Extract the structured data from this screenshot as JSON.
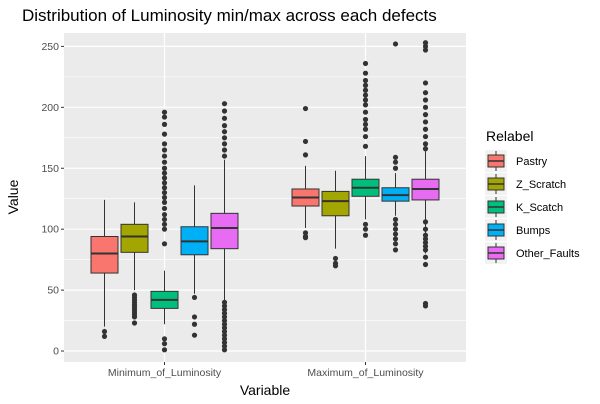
{
  "chart_data": {
    "type": "boxplot",
    "title": "Distribution of Luminosity min/max across each defects",
    "xlabel": "Variable",
    "ylabel": "Value",
    "categories": [
      "Minimum_of_Luminosity",
      "Maximum_of_Luminosity"
    ],
    "ylim": [
      -9,
      261
    ],
    "yticks": [
      0,
      50,
      100,
      150,
      200,
      250
    ],
    "grid": true,
    "background": "#ebebeb",
    "legend": {
      "title": "Relabel",
      "position": "right"
    },
    "series": [
      {
        "name": "Pastry",
        "color": "#F8766D",
        "boxes": [
          {
            "category": "Minimum_of_Luminosity",
            "min": 20,
            "q1": 64,
            "median": 80,
            "q3": 94,
            "max": 124,
            "outliers": [
              16,
              12
            ]
          },
          {
            "category": "Maximum_of_Luminosity",
            "min": 101,
            "q1": 119,
            "median": 126,
            "q3": 133,
            "max": 152,
            "outliers": [
              199,
              172,
              161,
              97,
              94,
              93
            ]
          }
        ]
      },
      {
        "name": "Z_Scratch",
        "color": "#A3A500",
        "boxes": [
          {
            "category": "Minimum_of_Luminosity",
            "min": 50,
            "q1": 81,
            "median": 94,
            "q3": 104,
            "max": 122,
            "outliers": [
              46,
              44,
              42,
              40,
              38,
              36,
              34,
              32,
              30,
              28,
              23
            ]
          },
          {
            "category": "Maximum_of_Luminosity",
            "min": 84,
            "q1": 111,
            "median": 123,
            "q3": 131,
            "max": 148,
            "outliers": [
              76,
              72,
              70
            ]
          }
        ]
      },
      {
        "name": "K_Scatch",
        "color": "#00BF7D",
        "boxes": [
          {
            "category": "Minimum_of_Luminosity",
            "min": 22,
            "q1": 35,
            "median": 42,
            "q3": 49,
            "max": 66,
            "outliers": [
              196,
              192,
              186,
              178,
              170,
              165,
              160,
              155,
              150,
              146,
              142,
              138,
              134,
              130,
              126,
              122,
              117,
              112,
              108,
              104,
              100,
              88,
              10,
              6,
              1
            ]
          },
          {
            "category": "Maximum_of_Luminosity",
            "min": 108,
            "q1": 127,
            "median": 134,
            "q3": 141,
            "max": 160,
            "outliers": [
              236,
              228,
              222,
              218,
              214,
              210,
              206,
              202,
              196,
              190,
              186,
              182,
              176,
              168,
              104,
              100,
              95
            ]
          }
        ]
      },
      {
        "name": "Bumps",
        "color": "#00B0F6",
        "boxes": [
          {
            "category": "Minimum_of_Luminosity",
            "min": 47,
            "q1": 79,
            "median": 90,
            "q3": 102,
            "max": 136,
            "outliers": [
              44,
              28,
              22,
              13
            ]
          },
          {
            "category": "Maximum_of_Luminosity",
            "min": 111,
            "q1": 123,
            "median": 128,
            "q3": 134,
            "max": 146,
            "outliers": [
              252,
              159,
              155,
              150,
              108,
              104,
              100,
              96,
              92,
              88,
              83
            ]
          }
        ]
      },
      {
        "name": "Other_Faults",
        "color": "#E76BF3",
        "boxes": [
          {
            "category": "Minimum_of_Luminosity",
            "min": 41,
            "q1": 84,
            "median": 101,
            "q3": 113,
            "max": 157,
            "outliers": [
              203,
              197,
              191,
              185,
              180,
              175,
              170,
              165,
              160,
              40,
              37,
              34,
              31,
              28,
              25,
              22,
              19,
              16,
              13,
              10,
              7,
              4,
              1
            ]
          },
          {
            "category": "Maximum_of_Luminosity",
            "min": 80,
            "q1": 124,
            "median": 133,
            "q3": 141,
            "max": 164,
            "outliers": [
              253,
              250,
              247,
              220,
              212,
              206,
              200,
              194,
              188,
              182,
              176,
              170,
              166,
              106,
              100,
              95,
              92,
              89,
              86,
              83,
              77,
              71,
              39,
              37
            ]
          }
        ]
      }
    ]
  }
}
